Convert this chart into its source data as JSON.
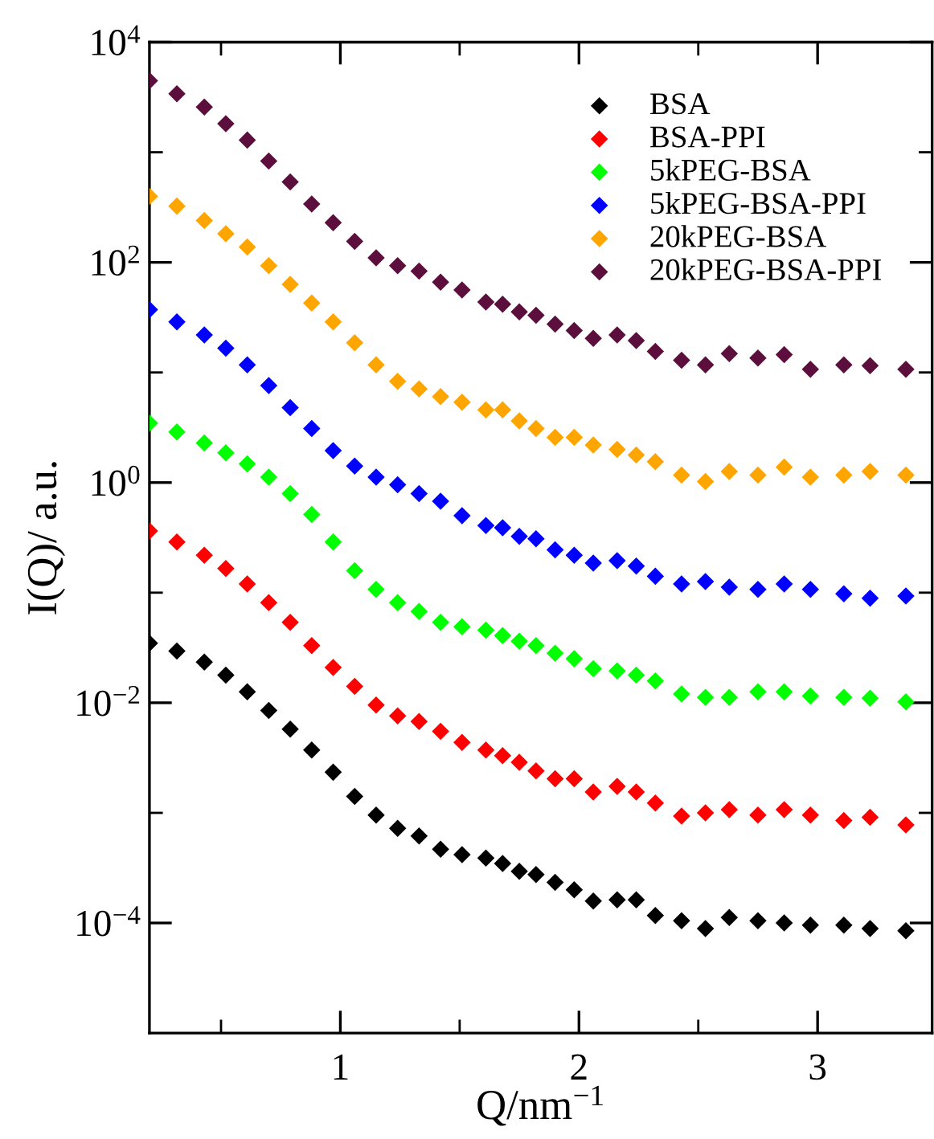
{
  "chart_data": {
    "type": "scatter",
    "xlabel": "Q/nm$^{−1}$",
    "ylabel": "I(Q)/ a.u.",
    "x": [
      0.2,
      0.315,
      0.43,
      0.52,
      0.61,
      0.7,
      0.79,
      0.88,
      0.97,
      1.06,
      1.15,
      1.24,
      1.33,
      1.42,
      1.51,
      1.61,
      1.68,
      1.75,
      1.82,
      1.9,
      1.98,
      2.06,
      2.16,
      2.24,
      2.32,
      2.43,
      2.53,
      2.63,
      2.75,
      2.86,
      2.97,
      3.11,
      3.22,
      3.37
    ],
    "series": [
      {
        "name": "BSA",
        "color": "#000000",
        "values": [
          0.0347,
          0.0295,
          0.0234,
          0.0178,
          0.0126,
          0.00851,
          0.00575,
          0.00372,
          0.00234,
          0.00141,
          0.000955,
          0.000724,
          0.000617,
          0.000468,
          0.000417,
          0.000389,
          0.000347,
          0.000295,
          0.000275,
          0.000234,
          0.0002,
          0.000158,
          0.000162,
          0.000162,
          0.000117,
          0.000105,
          8.91e-05,
          0.000112,
          0.000105,
          0.0001,
          9.55e-05,
          9.55e-05,
          8.91e-05,
          8.51e-05
        ]
      },
      {
        "name": "BSA-PPI",
        "color": "#ff0000",
        "values": [
          0.363,
          0.288,
          0.219,
          0.166,
          0.12,
          0.0813,
          0.0537,
          0.0331,
          0.0209,
          0.0141,
          0.00955,
          0.00759,
          0.00676,
          0.0055,
          0.00437,
          0.00372,
          0.00331,
          0.00288,
          0.0024,
          0.00204,
          0.00204,
          0.00155,
          0.00174,
          0.00155,
          0.00123,
          0.000933,
          0.001,
          0.00107,
          0.000955,
          0.00107,
          0.000955,
          0.000851,
          0.000912,
          0.000776
        ]
      },
      {
        "name": "5kPEG-BSA",
        "color": "#00ff00",
        "values": [
          3.47,
          2.88,
          2.29,
          1.86,
          1.48,
          1.12,
          0.794,
          0.513,
          0.288,
          0.158,
          0.107,
          0.0813,
          0.0676,
          0.0537,
          0.049,
          0.0457,
          0.0407,
          0.0363,
          0.0331,
          0.0282,
          0.0251,
          0.0204,
          0.0195,
          0.0178,
          0.0158,
          0.012,
          0.0112,
          0.0112,
          0.0126,
          0.0126,
          0.0115,
          0.0112,
          0.011,
          0.0102
        ]
      },
      {
        "name": "5kPEG-BSA-PPI",
        "color": "#0000ff",
        "values": [
          37.2,
          28.8,
          21.9,
          16.6,
          11.7,
          7.59,
          4.79,
          3.09,
          1.95,
          1.41,
          1.12,
          0.955,
          0.794,
          0.676,
          0.501,
          0.407,
          0.389,
          0.324,
          0.309,
          0.245,
          0.219,
          0.186,
          0.195,
          0.174,
          0.141,
          0.12,
          0.126,
          0.112,
          0.107,
          0.12,
          0.107,
          0.0977,
          0.0891,
          0.0933
        ]
      },
      {
        "name": "20kPEG-BSA",
        "color": "#ffa500",
        "values": [
          398,
          324,
          240,
          182,
          138,
          93.3,
          63.1,
          42.7,
          28.8,
          18.6,
          11.7,
          8.32,
          7.08,
          6.03,
          5.37,
          4.57,
          4.57,
          3.63,
          3.09,
          2.57,
          2.57,
          2.19,
          2.0,
          1.78,
          1.55,
          1.17,
          1.02,
          1.26,
          1.17,
          1.38,
          1.12,
          1.17,
          1.26,
          1.17
        ]
      },
      {
        "name": "20kPEG-BSA-PPI",
        "color": "#5c0f3c",
        "values": [
          4470,
          3390,
          2570,
          1820,
          1290,
          832,
          537,
          339,
          229,
          155,
          110,
          93.3,
          83.2,
          66.1,
          56.2,
          43.7,
          41.7,
          35.5,
          33.1,
          27.5,
          24.0,
          20.4,
          21.9,
          19.5,
          15.5,
          12.9,
          11.7,
          14.8,
          13.5,
          14.5,
          10.7,
          11.7,
          11.5,
          10.7
        ]
      }
    ],
    "log": "y",
    "xlim": [
      0.2,
      3.48
    ],
    "ylim": [
      1e-05,
      10000.0
    ],
    "xticks": [
      {
        "value": 0.5,
        "label": null
      },
      1,
      {
        "value": 1.5,
        "label": null
      },
      2,
      {
        "value": 2.5,
        "label": null
      },
      3
    ],
    "yticks": [
      {
        "value": 0.0001,
        "label": "10$^{−4}$"
      },
      {
        "value": 0.001,
        "label": null
      },
      {
        "value": 0.01,
        "label": "10$^{−2}$"
      },
      {
        "value": 0.1,
        "label": null
      },
      {
        "value": 1,
        "label": "10$^{0}$"
      },
      {
        "value": 10,
        "label": null
      },
      {
        "value": 100,
        "label": "10$^{2}$"
      },
      {
        "value": 1000,
        "label": null
      },
      {
        "value": 10000,
        "label": "10$^{4}$"
      }
    ],
    "marker": "diamond",
    "legend": "top right",
    "grid": false
  }
}
